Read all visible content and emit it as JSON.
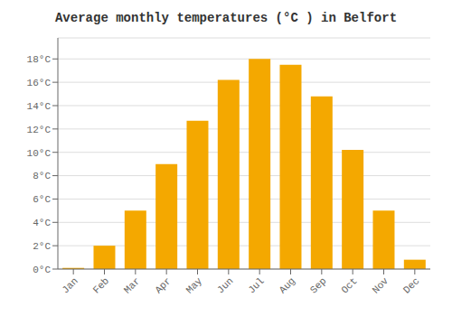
{
  "chart_data": {
    "type": "bar",
    "title": "Average monthly temperatures (°C ) in Belfort",
    "categories": [
      "Jan",
      "Feb",
      "Mar",
      "Apr",
      "May",
      "Jun",
      "Jul",
      "Aug",
      "Sep",
      "Oct",
      "Nov",
      "Dec"
    ],
    "values": [
      0.1,
      2.0,
      5.0,
      9.0,
      12.7,
      16.2,
      18.0,
      17.5,
      14.8,
      10.2,
      5.0,
      0.8
    ],
    "color": "#F4A800",
    "ylim": [
      0,
      19.8
    ],
    "yticks": [
      {
        "value": 0,
        "label": "0°C"
      },
      {
        "value": 2,
        "label": "2°C"
      },
      {
        "value": 4,
        "label": "4°C"
      },
      {
        "value": 6,
        "label": "6°C"
      },
      {
        "value": 8,
        "label": "8°C"
      },
      {
        "value": 10,
        "label": "10°C"
      },
      {
        "value": 12,
        "label": "12°C"
      },
      {
        "value": 14,
        "label": "14°C"
      },
      {
        "value": 16,
        "label": "16°C"
      },
      {
        "value": 18,
        "label": "18°C"
      }
    ],
    "grid": true
  }
}
